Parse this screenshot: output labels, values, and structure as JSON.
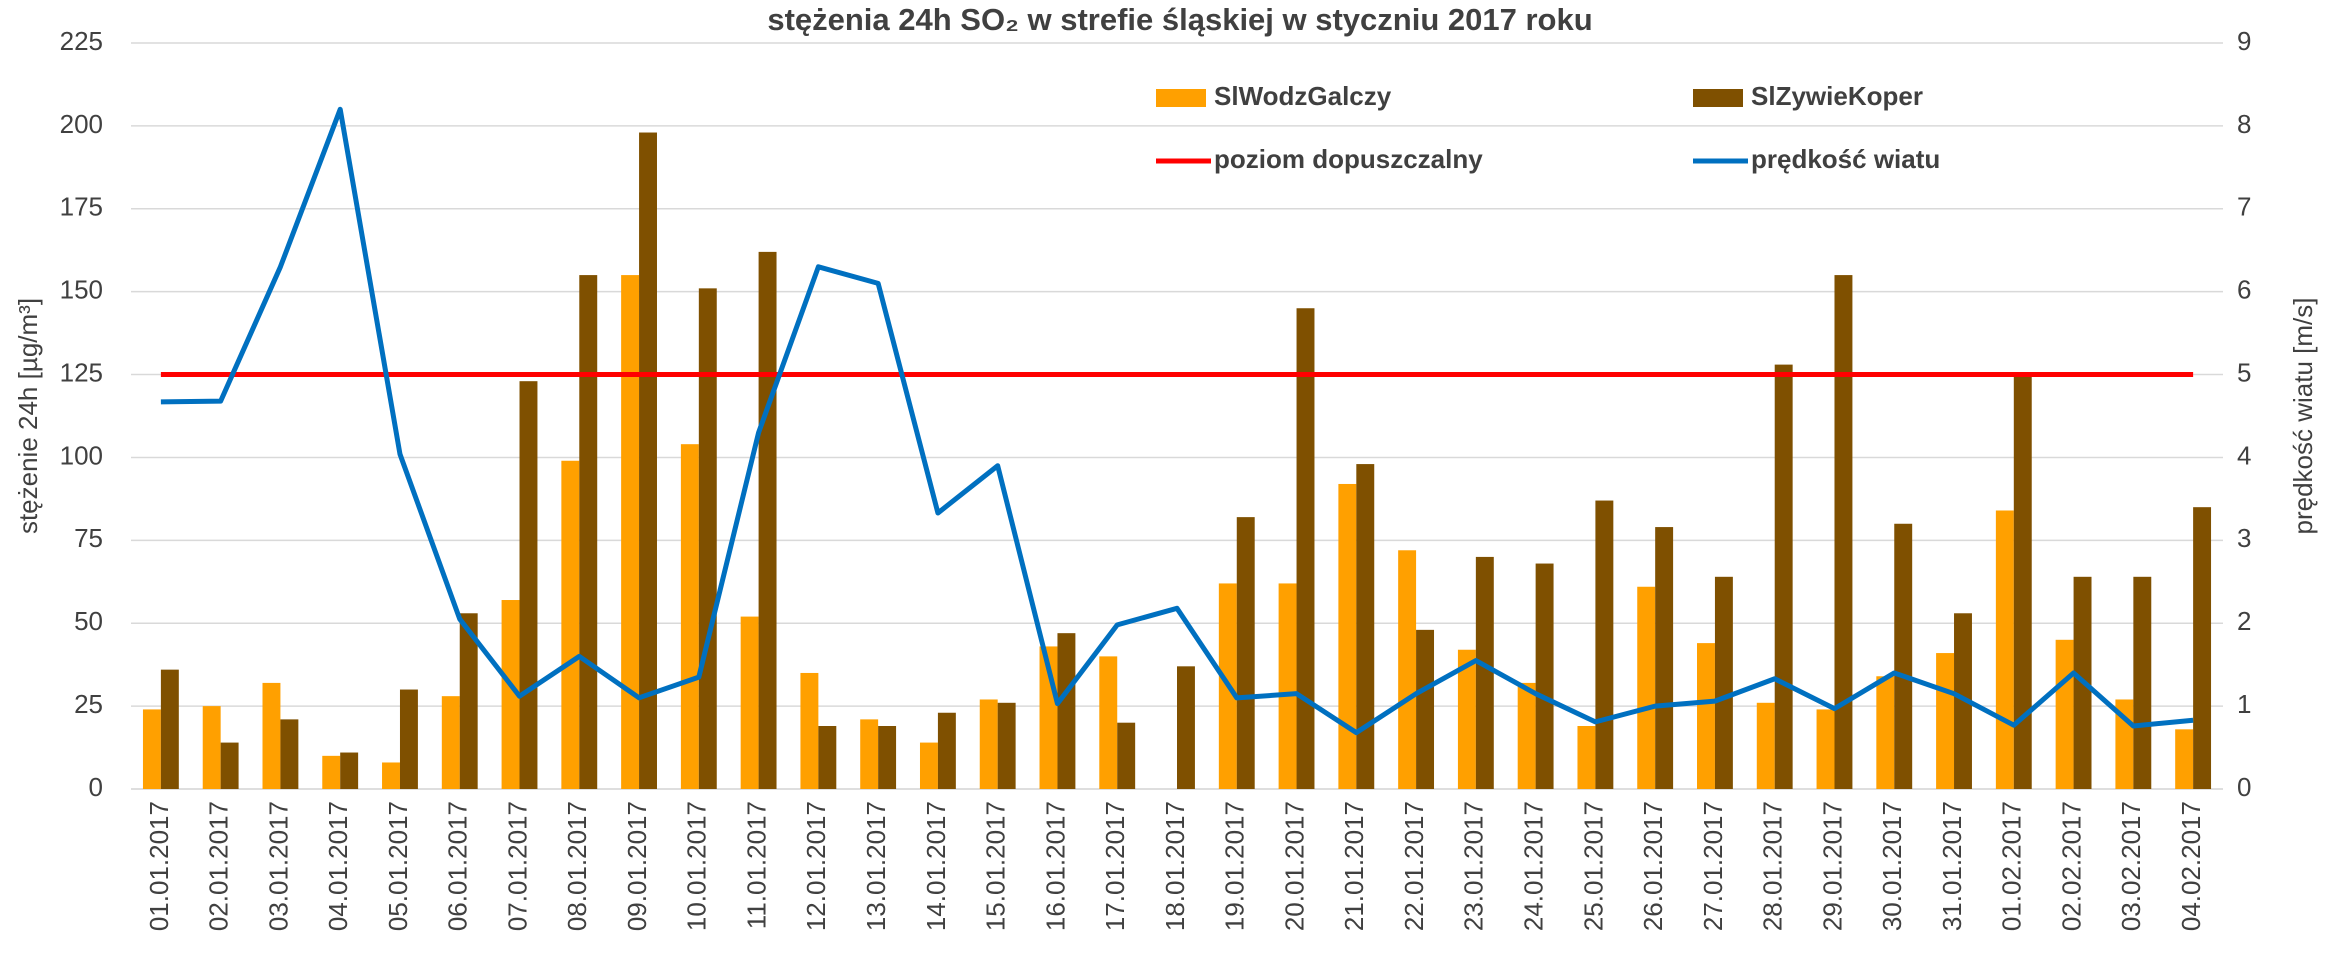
{
  "chart_data": {
    "type": "bar",
    "title": "stężenia 24h SO₂ w strefie śląskiej w styczniu 2017 roku",
    "y_label": "stężenie 24h [µg/m³]",
    "y2_label": "prędkość wiatu [m/s]",
    "categories": [
      "01.01.2017",
      "02.01.2017",
      "03.01.2017",
      "04.01.2017",
      "05.01.2017",
      "06.01.2017",
      "07.01.2017",
      "08.01.2017",
      "09.01.2017",
      "10.01.2017",
      "11.01.2017",
      "12.01.2017",
      "13.01.2017",
      "14.01.2017",
      "15.01.2017",
      "16.01.2017",
      "17.01.2017",
      "18.01.2017",
      "19.01.2017",
      "20.01.2017",
      "21.01.2017",
      "22.01.2017",
      "23.01.2017",
      "24.01.2017",
      "25.01.2017",
      "26.01.2017",
      "27.01.2017",
      "28.01.2017",
      "29.01.2017",
      "30.01.2017",
      "31.01.2017",
      "01.02.2017",
      "02.02.2017",
      "03.02.2017",
      "04.02.2017"
    ],
    "series": [
      {
        "name": "SlWodzGalczy",
        "color": "#ffa000",
        "type": "bar",
        "values": [
          24,
          25,
          32,
          10,
          8,
          28,
          57,
          99,
          155,
          104,
          52,
          35,
          21,
          14,
          27,
          43,
          40,
          null,
          62,
          62,
          92,
          72,
          42,
          32,
          19,
          61,
          44,
          26,
          24,
          34,
          41,
          84,
          45,
          27,
          18
        ]
      },
      {
        "name": "SlZywieKoper",
        "color": "#7f5000",
        "type": "bar",
        "values": [
          36,
          14,
          21,
          11,
          30,
          53,
          123,
          155,
          198,
          151,
          162,
          19,
          19,
          23,
          26,
          47,
          20,
          37,
          82,
          145,
          98,
          48,
          70,
          68,
          87,
          79,
          64,
          128,
          155,
          80,
          53,
          125,
          64,
          64,
          85
        ]
      },
      {
        "name": "poziom dopuszczalny",
        "color": "#ff0000",
        "type": "line",
        "values": [
          125,
          125,
          125,
          125,
          125,
          125,
          125,
          125,
          125,
          125,
          125,
          125,
          125,
          125,
          125,
          125,
          125,
          125,
          125,
          125,
          125,
          125,
          125,
          125,
          125,
          125,
          125,
          125,
          125,
          125,
          125,
          125,
          125,
          125,
          125
        ]
      },
      {
        "name": "prędkość wiatu",
        "color": "#0070c0",
        "type": "line",
        "axis": "y2",
        "values": [
          4.67,
          4.68,
          6.3,
          8.2,
          4.04,
          2.05,
          1.12,
          1.6,
          1.1,
          1.35,
          4.3,
          6.3,
          6.1,
          3.33,
          3.9,
          1.03,
          1.98,
          2.18,
          1.1,
          1.15,
          0.68,
          1.15,
          1.55,
          1.15,
          0.81,
          1.0,
          1.06,
          1.33,
          0.97,
          1.4,
          1.15,
          0.77,
          1.4,
          0.76,
          0.83
        ]
      }
    ],
    "ylim": [
      0,
      225
    ],
    "yticks": [
      0,
      25,
      50,
      75,
      100,
      125,
      150,
      175,
      200,
      225
    ],
    "y2lim": [
      0,
      9
    ],
    "y2ticks": [
      0,
      1,
      2,
      3,
      4,
      5,
      6,
      7,
      8,
      9
    ],
    "grid": true
  }
}
